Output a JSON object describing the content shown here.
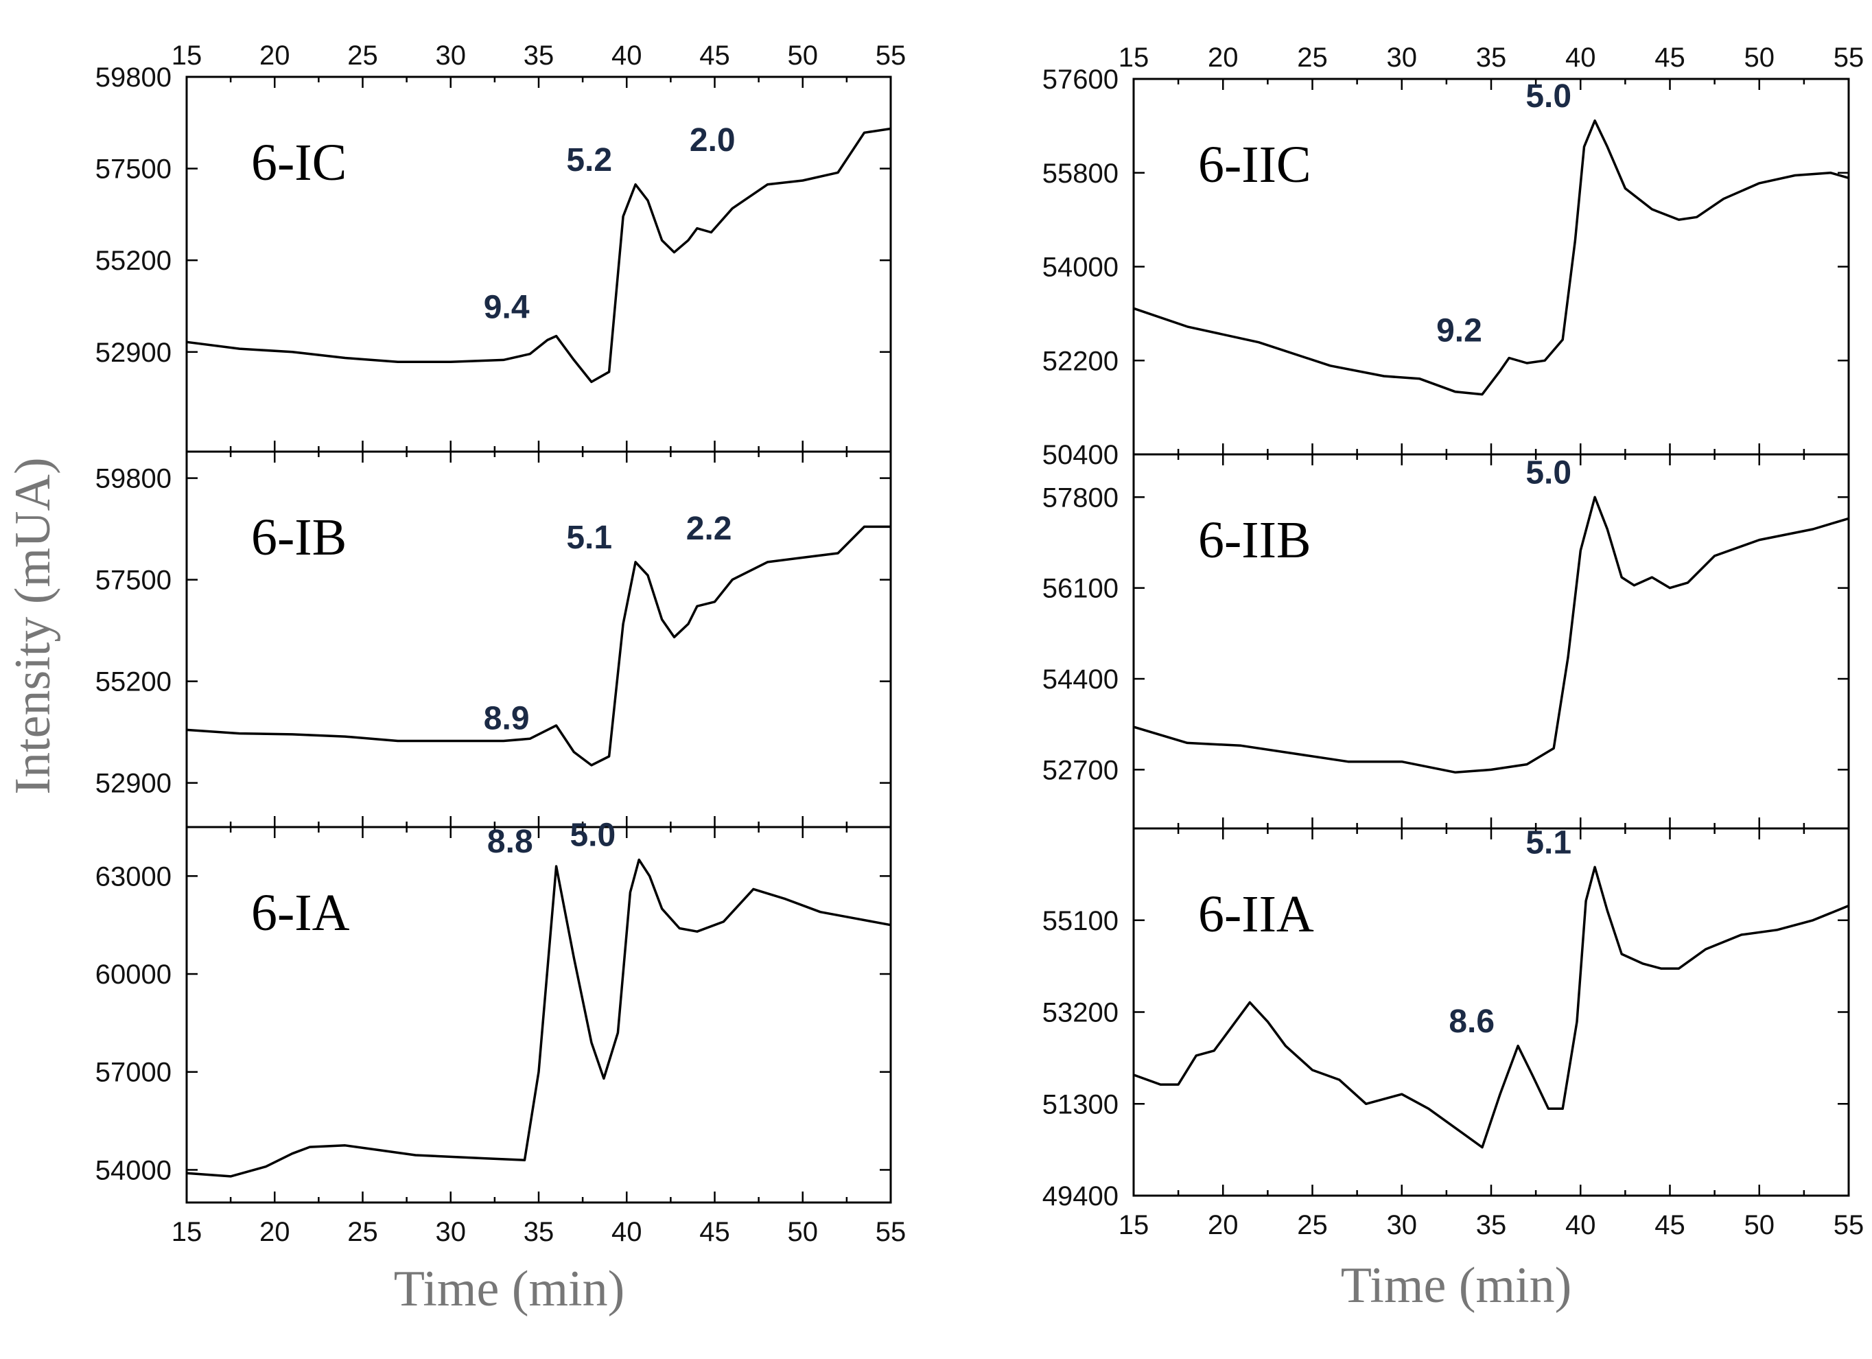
{
  "chart_data": {
    "type": "line",
    "xlabel": "Time (min)",
    "ylabel": "Intensity (mUA)",
    "xlim": [
      15,
      55
    ],
    "x_ticks": [
      "15",
      "20",
      "25",
      "30",
      "35",
      "40",
      "45",
      "50",
      "55"
    ],
    "panels": [
      {
        "id": "6-IC",
        "label": "6-IC",
        "ylim": [
          50400,
          59800
        ],
        "y_ticks": [
          "59800",
          "57500",
          "55200",
          "52900"
        ],
        "y_tick_values": [
          59800,
          57500,
          55200,
          52900
        ],
        "peaks": [
          {
            "label": "9.4",
            "x": 35.8,
            "y": 53400
          },
          {
            "label": "5.2",
            "x": 40.5,
            "y": 57100
          },
          {
            "label": "2.0",
            "x": 47.5,
            "y": 57600
          }
        ],
        "series": {
          "x": [
            15,
            18,
            21,
            24,
            27,
            30,
            33,
            34.5,
            35.5,
            36,
            37,
            38,
            39,
            39.8,
            40.5,
            41.2,
            42,
            42.7,
            43.5,
            44,
            44.8,
            46,
            48,
            50,
            52,
            53.5,
            55
          ],
          "y": [
            53150,
            52980,
            52900,
            52750,
            52650,
            52650,
            52700,
            52850,
            53200,
            53300,
            52700,
            52150,
            52400,
            56300,
            57100,
            56700,
            55700,
            55400,
            55700,
            56000,
            55900,
            56500,
            57100,
            57200,
            57400,
            58400,
            58500
          ]
        }
      },
      {
        "id": "6-IB",
        "label": "6-IB",
        "ylim": [
          51900,
          60400
        ],
        "y_ticks": [
          "59800",
          "57500",
          "55200",
          "52900"
        ],
        "y_tick_values": [
          59800,
          57500,
          55200,
          52900
        ],
        "peaks": [
          {
            "label": "8.9",
            "x": 35.8,
            "y": 53800
          },
          {
            "label": "5.1",
            "x": 40.5,
            "y": 57900
          },
          {
            "label": "2.2",
            "x": 47.3,
            "y": 58100
          }
        ],
        "series": {
          "x": [
            15,
            18,
            21,
            24,
            27,
            30,
            33,
            34.5,
            35.5,
            36,
            37,
            38,
            39,
            39.8,
            40.5,
            41.2,
            42,
            42.7,
            43.5,
            44,
            45,
            46,
            48,
            50,
            52,
            53.5,
            55
          ],
          "y": [
            54100,
            54020,
            54000,
            53950,
            53850,
            53850,
            53850,
            53900,
            54100,
            54200,
            53600,
            53300,
            53500,
            56500,
            57900,
            57600,
            56600,
            56200,
            56500,
            56900,
            57000,
            57500,
            57900,
            58000,
            58100,
            58700,
            58700
          ]
        }
      },
      {
        "id": "6-IA",
        "label": "6-IA",
        "ylim": [
          53000,
          64500
        ],
        "y_ticks": [
          "63000",
          "60000",
          "57000",
          "54000"
        ],
        "y_tick_values": [
          63000,
          60000,
          57000,
          54000
        ],
        "peaks": [
          {
            "label": "8.8",
            "x": 36.0,
            "y": 63300
          },
          {
            "label": "5.0",
            "x": 40.7,
            "y": 63500
          }
        ],
        "series": {
          "x": [
            15,
            17.5,
            19.5,
            21,
            22,
            24,
            26,
            28,
            30,
            32,
            34.2,
            35,
            36,
            37,
            38,
            38.7,
            39.5,
            40.2,
            40.7,
            41.3,
            42,
            43,
            44,
            45.5,
            47.2,
            49,
            51,
            53,
            55
          ],
          "y": [
            53900,
            53800,
            54100,
            54500,
            54700,
            54750,
            54600,
            54450,
            54400,
            54350,
            54300,
            57000,
            63300,
            60500,
            57900,
            56800,
            58200,
            62500,
            63500,
            63000,
            62000,
            61400,
            61300,
            61600,
            62600,
            62300,
            61900,
            61700,
            61500
          ]
        }
      },
      {
        "id": "6-IIC",
        "label": "6-IIC",
        "ylim": [
          50400,
          57600
        ],
        "y_ticks": [
          "57600",
          "55800",
          "54000",
          "52200",
          "50400"
        ],
        "y_tick_values": [
          57600,
          55800,
          54000,
          52200,
          50400
        ],
        "peaks": [
          {
            "label": "9.2",
            "x": 35.8,
            "y": 52300
          },
          {
            "label": "5.0",
            "x": 40.8,
            "y": 56800
          }
        ],
        "series": {
          "x": [
            15,
            18,
            22,
            26,
            29,
            31,
            33,
            34.5,
            35.5,
            36,
            37,
            38,
            39,
            39.7,
            40.2,
            40.8,
            41.5,
            42.5,
            44,
            45.5,
            46.5,
            48,
            50,
            52,
            54,
            55
          ],
          "y": [
            53200,
            52850,
            52550,
            52100,
            51900,
            51850,
            51600,
            51550,
            52000,
            52250,
            52150,
            52200,
            52600,
            54500,
            56300,
            56800,
            56300,
            55500,
            55100,
            54900,
            54950,
            55300,
            55600,
            55750,
            55800,
            55700
          ]
        }
      },
      {
        "id": "6-IIB",
        "label": "6-IIB",
        "ylim": [
          51600,
          58600
        ],
        "y_ticks": [
          "57800",
          "56100",
          "54400",
          "52700"
        ],
        "y_tick_values": [
          57800,
          56100,
          54400,
          52700
        ],
        "peaks": [
          {
            "label": "5.0",
            "x": 40.8,
            "y": 57800
          }
        ],
        "series": {
          "x": [
            15,
            18,
            21,
            24,
            27,
            30,
            33,
            35,
            37,
            38.5,
            39.3,
            40,
            40.8,
            41.5,
            42.3,
            43,
            44,
            45,
            46,
            47.5,
            50,
            53,
            55
          ],
          "y": [
            53500,
            53200,
            53150,
            53000,
            52850,
            52850,
            52650,
            52700,
            52800,
            53100,
            54800,
            56800,
            57800,
            57200,
            56300,
            56150,
            56300,
            56100,
            56200,
            56700,
            57000,
            57200,
            57400
          ]
        }
      },
      {
        "id": "6-IIA",
        "label": "6-IIA",
        "ylim": [
          49400,
          57000
        ],
        "y_ticks": [
          "55100",
          "53200",
          "51300",
          "49400"
        ],
        "y_tick_values": [
          55100,
          53200,
          51300,
          49400
        ],
        "peaks": [
          {
            "label": "8.6",
            "x": 36.5,
            "y": 52500
          },
          {
            "label": "5.1",
            "x": 40.8,
            "y": 56200
          }
        ],
        "series": {
          "x": [
            15,
            16.5,
            17.5,
            18.5,
            19.5,
            20.5,
            21.5,
            22.5,
            23.5,
            25,
            26.5,
            28,
            30,
            31.5,
            33,
            34.5,
            35.5,
            36.5,
            37.3,
            38.2,
            39,
            39.8,
            40.3,
            40.8,
            41.5,
            42.3,
            43.5,
            44.5,
            45.5,
            47,
            49,
            51,
            53,
            55
          ],
          "y": [
            51900,
            51700,
            51700,
            52300,
            52400,
            52900,
            53400,
            53000,
            52500,
            52000,
            51800,
            51300,
            51500,
            51200,
            50800,
            50400,
            51500,
            52500,
            51900,
            51200,
            51200,
            53000,
            55500,
            56200,
            55300,
            54400,
            54200,
            54100,
            54100,
            54500,
            54800,
            54900,
            55100,
            55400
          ]
        }
      }
    ]
  }
}
